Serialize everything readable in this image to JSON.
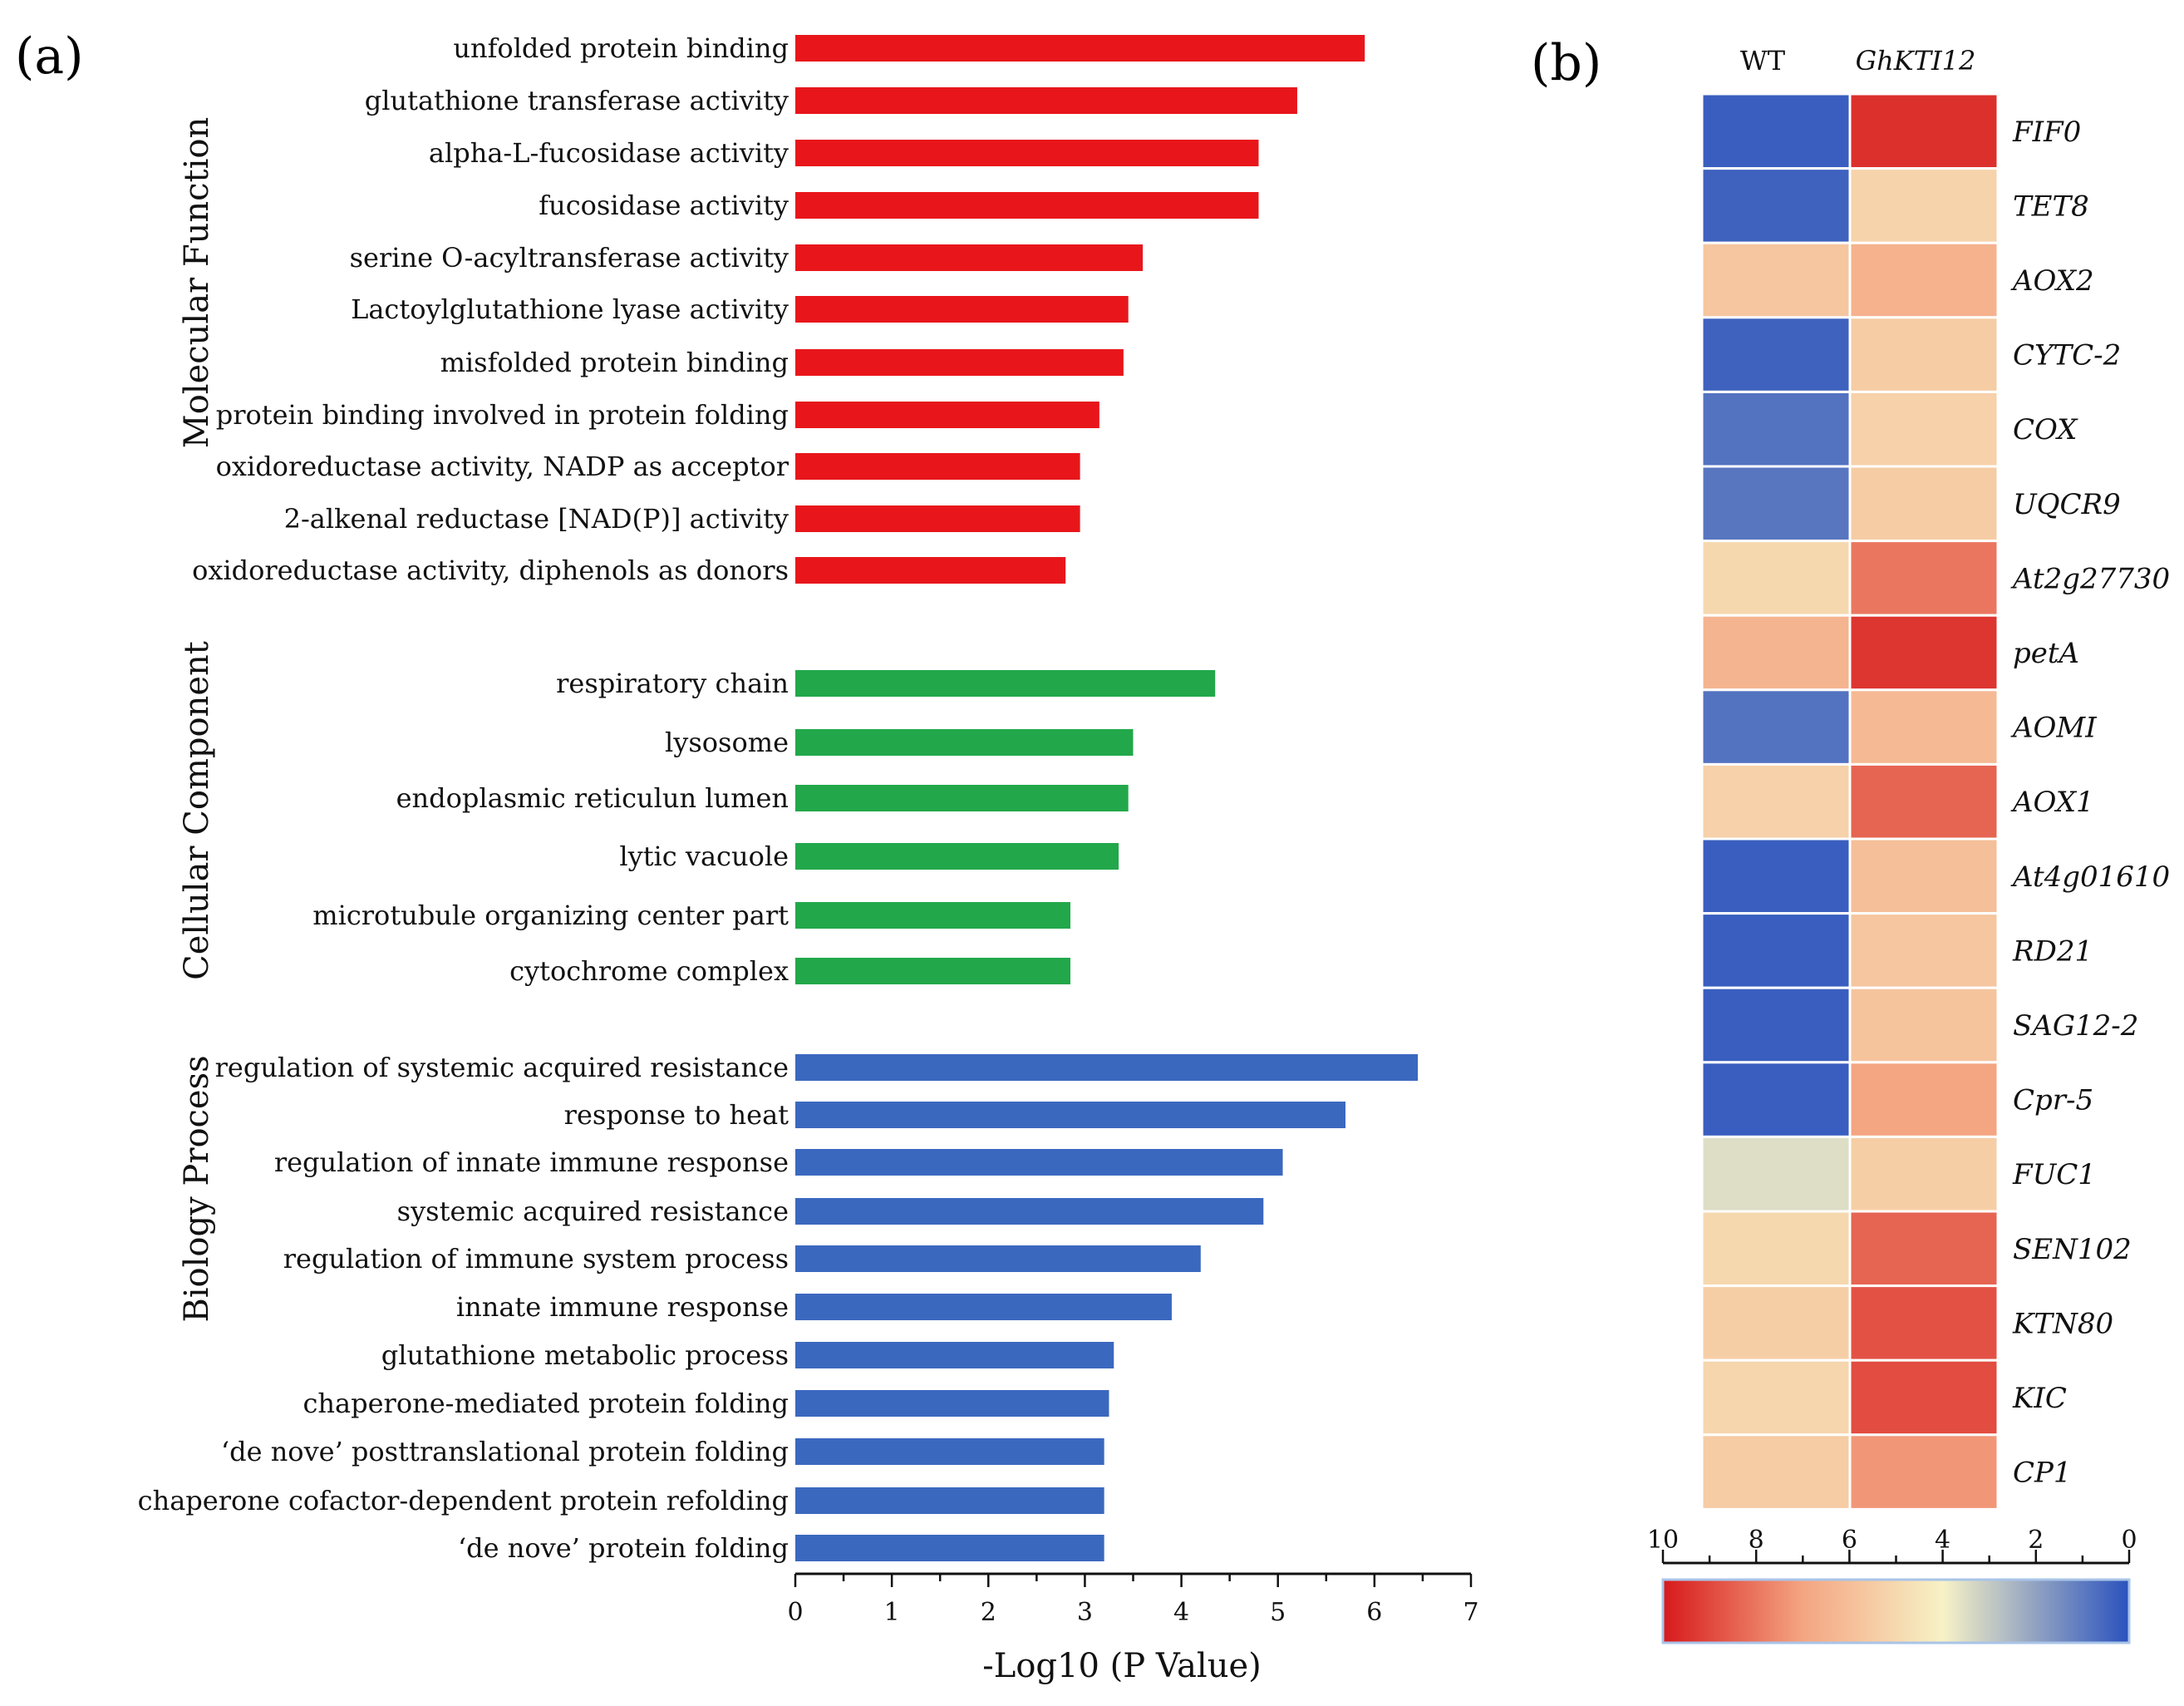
{
  "chart_data": [
    {
      "type": "bar",
      "orientation": "horizontal",
      "panel_label": "(a)",
      "xlabel": "-Log10 (P Value)",
      "xlim": [
        0,
        7
      ],
      "xticks": [
        0,
        1,
        2,
        3,
        4,
        5,
        6,
        7
      ],
      "groups": [
        {
          "name": "Molecular Function",
          "color": "#e8161b",
          "categories": [
            "unfolded protein binding",
            "glutathione transferase activity",
            "alpha-L-fucosidase activity",
            "fucosidase activity",
            "serine O-acyltransferase activity",
            "Lactoylglutathione lyase activity",
            "misfolded protein binding",
            "protein binding involved in protein folding",
            "oxidoreductase activity, NADP as acceptor",
            "2-alkenal reductase [NAD(P)] activity",
            "oxidoreductase activity, diphenols as donors"
          ],
          "values": [
            5.9,
            5.2,
            4.8,
            4.8,
            3.6,
            3.45,
            3.4,
            3.15,
            2.95,
            2.95,
            2.8
          ]
        },
        {
          "name": "Cellular Component",
          "color": "#22a84a",
          "categories": [
            "respiratory chain",
            "lysosome",
            "endoplasmic reticulun lumen",
            "lytic vacuole",
            "microtubule organizing center part",
            "cytochrome complex"
          ],
          "values": [
            4.35,
            3.5,
            3.45,
            3.35,
            2.85,
            2.85
          ]
        },
        {
          "name": "Biology Process",
          "color": "#3b68bf",
          "categories": [
            "regulation of systemic acquired resistance",
            "response to heat",
            "regulation of innate immune response",
            "systemic acquired resistance",
            "regulation of immune system process",
            "innate immune response",
            "glutathione metabolic process",
            "chaperone-mediated protein folding",
            "‘de nove’ posttranslational protein folding",
            "chaperone cofactor-dependent protein refolding",
            "‘de nove’ protein folding"
          ],
          "values": [
            6.45,
            5.7,
            5.05,
            4.85,
            4.2,
            3.9,
            3.3,
            3.25,
            3.2,
            3.2,
            3.2
          ]
        }
      ]
    },
    {
      "type": "heatmap",
      "panel_label": "(b)",
      "columns": [
        "WT",
        "GhKTI12"
      ],
      "rows": [
        "FIF0",
        "TET8",
        "AOX2",
        "CYTC-2",
        "COX",
        "UQCR9",
        "At2g27730",
        "petA",
        "AOMI",
        "AOX1",
        "At4g01610",
        "RD21",
        "SAG12-2",
        "Cpr-5",
        "FUC1",
        "SEN102",
        "KTN80",
        "KIC",
        "CP1"
      ],
      "values": [
        [
          0.3,
          9.5
        ],
        [
          0.4,
          5.2
        ],
        [
          5.7,
          6.5
        ],
        [
          0.4,
          5.5
        ],
        [
          0.8,
          5.3
        ],
        [
          0.9,
          5.5
        ],
        [
          5.0,
          8.0
        ],
        [
          6.4,
          9.4
        ],
        [
          0.8,
          6.2
        ],
        [
          5.3,
          8.4
        ],
        [
          0.3,
          6.0
        ],
        [
          0.3,
          5.7
        ],
        [
          0.3,
          5.8
        ],
        [
          0.3,
          7.0
        ],
        [
          3.5,
          5.4
        ],
        [
          5.0,
          8.4
        ],
        [
          5.4,
          8.8
        ],
        [
          5.1,
          8.9
        ],
        [
          5.5,
          7.3
        ]
      ],
      "colorbar": {
        "range": [
          10,
          0
        ],
        "ticks": [
          10,
          8,
          6,
          4,
          2,
          0
        ],
        "colors": [
          "#d7191c",
          "#f4a582",
          "#f7f2c6",
          "#2a52be"
        ]
      }
    }
  ]
}
